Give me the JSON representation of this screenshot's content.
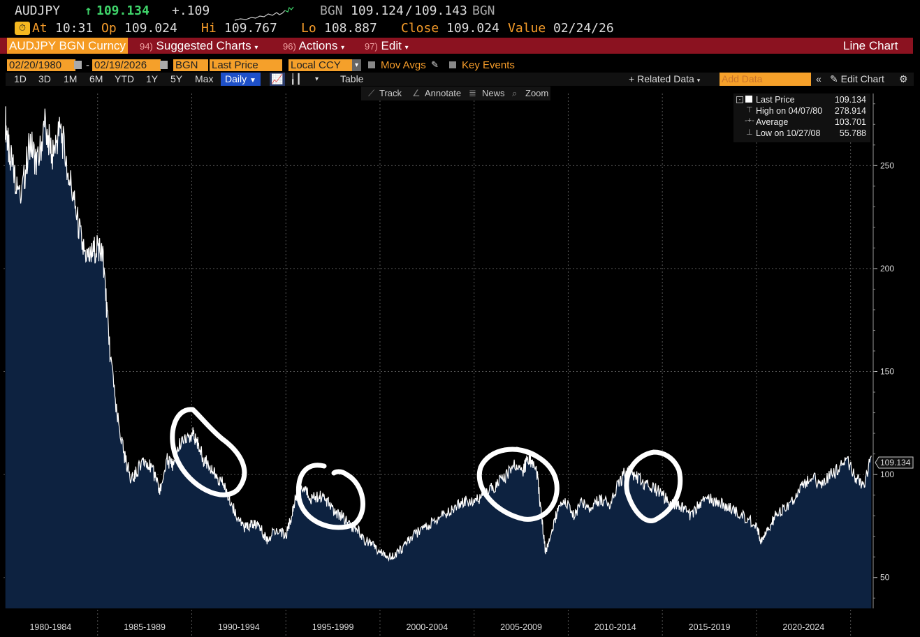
{
  "header": {
    "ticker": "AUDJPY",
    "arrow": "↑",
    "last": "109.134",
    "change": "+.109",
    "bid_label": "BGN",
    "bid": "109.124",
    "ask": "109.143",
    "ask_label": "BGN",
    "at_label": "At",
    "at_time": "10:31",
    "op_label": "Op",
    "op": "109.024",
    "hi_label": "Hi",
    "hi": "109.767",
    "lo_label": "Lo",
    "lo": "108.887",
    "close_label": "Close",
    "close": "109.024",
    "value_label": "Value",
    "value_date": "02/24/26"
  },
  "menubar": {
    "security": "AUDJPY BGN Curncy",
    "suggested_num": "94)",
    "suggested": "Suggested Charts",
    "actions_num": "96)",
    "actions": "Actions",
    "edit_num": "97)",
    "edit": "Edit",
    "chart_type": "Line Chart"
  },
  "settings": {
    "start_date": "02/20/1980",
    "dash": "-",
    "end_date": "02/19/2026",
    "source": "BGN",
    "field": "Last Price",
    "currency": "Local CCY",
    "mov_avgs": "Mov Avgs",
    "key_events": "Key Events"
  },
  "periods": [
    "1D",
    "3D",
    "1M",
    "6M",
    "YTD",
    "1Y",
    "5Y",
    "Max"
  ],
  "toolbar": {
    "frequency": "Daily",
    "table": "Table",
    "related": "Related Data",
    "add_data_placeholder": "Add Data",
    "edit_chart": "Edit Chart"
  },
  "chart_tools": {
    "track": "Track",
    "annotate": "Annotate",
    "news": "News",
    "zoom": "Zoom"
  },
  "legend": {
    "last_label": "Last Price",
    "last_value": "109.134",
    "high_label": "High on 04/07/80",
    "high_value": "278.914",
    "avg_label": "Average",
    "avg_value": "103.701",
    "low_label": "Low on 10/27/08",
    "low_value": "55.788"
  },
  "colors": {
    "background": "#000000",
    "area_fill": "#0d2240",
    "line": "#ffffff",
    "orange": "#f79d2a",
    "green": "#3fd46a",
    "red_bar": "#8b1220"
  },
  "chart_data": {
    "type": "area",
    "series": [
      {
        "name": "Last Price",
        "x": [
          1980.1,
          1980.3,
          1980.6,
          1981.0,
          1981.4,
          1981.8,
          1982.2,
          1982.6,
          1983.0,
          1983.4,
          1983.8,
          1984.2,
          1984.6,
          1985.0,
          1985.3,
          1985.6,
          1986.0,
          1986.4,
          1986.8,
          1987.2,
          1987.6,
          1988.0,
          1988.3,
          1988.7,
          1989.0,
          1989.5,
          1990.0,
          1990.3,
          1990.6,
          1991.0,
          1991.3,
          1991.7,
          1992.0,
          1992.4,
          1992.8,
          1993.2,
          1993.6,
          1994.0,
          1994.5,
          1995.0,
          1995.3,
          1995.6,
          1996.0,
          1996.4,
          1996.8,
          1997.2,
          1997.6,
          1998.0,
          1998.4,
          1998.8,
          1999.2,
          1999.6,
          2000.0,
          2000.5,
          2000.9,
          2001.3,
          2001.7,
          2002.2,
          2002.7,
          2003.2,
          2003.7,
          2004.2,
          2004.7,
          2005.2,
          2005.7,
          2006.2,
          2006.7,
          2007.2,
          2007.6,
          2007.9,
          2008.3,
          2008.6,
          2008.8,
          2009.0,
          2009.4,
          2009.8,
          2010.3,
          2010.7,
          2011.2,
          2011.7,
          2012.2,
          2012.7,
          2013.1,
          2013.5,
          2014.0,
          2014.5,
          2015.0,
          2015.5,
          2016.0,
          2016.5,
          2017.0,
          2017.5,
          2018.0,
          2018.5,
          2019.0,
          2019.5,
          2020.0,
          2020.2,
          2020.6,
          2021.0,
          2021.5,
          2022.0,
          2022.5,
          2023.0,
          2023.5,
          2024.0,
          2024.5,
          2024.9,
          2025.3,
          2025.7,
          2026.1
        ],
        "y": [
          272,
          255,
          245,
          238,
          262,
          250,
          270,
          255,
          268,
          250,
          230,
          210,
          205,
          212,
          205,
          165,
          130,
          110,
          97,
          103,
          107,
          100,
          92,
          107,
          105,
          118,
          120,
          116,
          108,
          104,
          98,
          95,
          88,
          80,
          74,
          76,
          75,
          68,
          74,
          70,
          80,
          92,
          93,
          88,
          90,
          87,
          82,
          80,
          75,
          74,
          68,
          66,
          62,
          60,
          62,
          65,
          70,
          73,
          76,
          80,
          82,
          86,
          87,
          88,
          92,
          95,
          100,
          105,
          102,
          108,
          104,
          78,
          62,
          68,
          82,
          88,
          80,
          86,
          84,
          88,
          86,
          96,
          102,
          100,
          96,
          94,
          90,
          86,
          84,
          80,
          86,
          88,
          86,
          84,
          82,
          78,
          76,
          68,
          72,
          80,
          84,
          88,
          96,
          98,
          95,
          100,
          104,
          106,
          98,
          95,
          109.1
        ],
        "last": 109.134
      }
    ],
    "ylim": [
      35,
      285
    ],
    "xlim": [
      1980.0,
      2026.2
    ],
    "y_ticks": [
      50,
      100,
      150,
      200,
      250
    ],
    "x_tick_labels": [
      "1980-1984",
      "1985-1989",
      "1990-1994",
      "1995-1999",
      "2000-2004",
      "2005-2009",
      "2010-2014",
      "2015-2019",
      "2020-2024"
    ],
    "grid": true,
    "legend_position": "top-right"
  },
  "annotations": [
    {
      "type": "circle",
      "around": "1990-1992 peak"
    },
    {
      "type": "circle",
      "around": "1996-1997 peak"
    },
    {
      "type": "circle",
      "around": "2007 peak"
    },
    {
      "type": "circle",
      "around": "2013 peak"
    }
  ]
}
